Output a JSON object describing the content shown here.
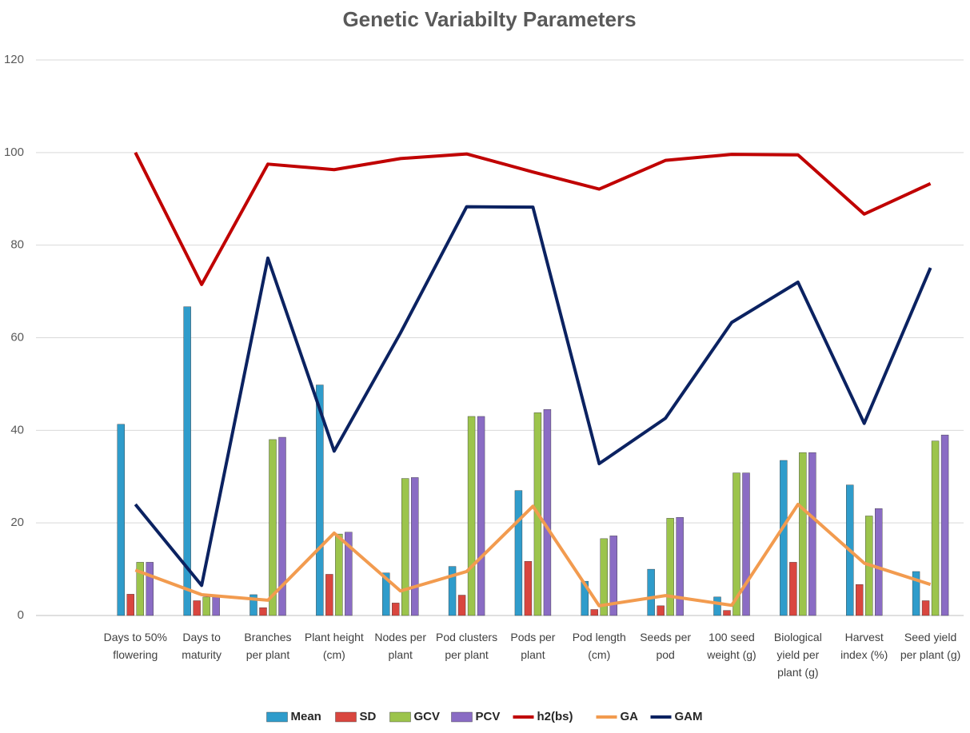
{
  "chart_data": {
    "type": "bar",
    "title": "Genetic Variabilty Parameters",
    "categories": [
      null,
      "Days to 50% flowering",
      "Days to maturity",
      "Branches per plant",
      "Plant height (cm)",
      "Nodes per plant",
      "Pod clusters per plant",
      "Pods per plant",
      "Pod length (cm)",
      "Seeds per pod",
      "100 seed weight (g)",
      "Biological yield per plant (g)",
      "Harvest index (%)",
      "Seed yield per plant (g)"
    ],
    "series": [
      {
        "name": "Mean",
        "type": "bar",
        "color": "#2f9ccb",
        "values": [
          null,
          41.3,
          66.7,
          4.5,
          49.8,
          9.2,
          10.6,
          27,
          7.4,
          10,
          4,
          33.5,
          28.2,
          9.5
        ]
      },
      {
        "name": "SD",
        "type": "bar",
        "color": "#d9463f",
        "values": [
          null,
          4.6,
          3.2,
          1.7,
          8.9,
          2.7,
          4.4,
          11.7,
          1.3,
          2.1,
          1.1,
          11.5,
          6.7,
          3.2
        ]
      },
      {
        "name": "GCV",
        "type": "bar",
        "color": "#9cc44c",
        "values": [
          null,
          11.5,
          4,
          38,
          17.6,
          29.6,
          43,
          43.8,
          16.6,
          21,
          30.8,
          35.2,
          21.5,
          37.7
        ]
      },
      {
        "name": "PCV",
        "type": "bar",
        "color": "#8a6cc4",
        "values": [
          null,
          11.5,
          4,
          38.5,
          18,
          29.8,
          43,
          44.5,
          17.2,
          21.2,
          30.8,
          35.2,
          23.1,
          39
        ]
      },
      {
        "name": "h2(bs)",
        "type": "line",
        "color": "#c00000",
        "values": [
          null,
          100,
          71.5,
          97.5,
          96.3,
          98.7,
          99.7,
          95.8,
          92.1,
          98.3,
          99.6,
          99.5,
          86.7,
          93.3
        ]
      },
      {
        "name": "GA",
        "type": "line",
        "color": "#f29b4f",
        "values": [
          null,
          9.8,
          4.5,
          3.3,
          17.8,
          5.3,
          9.5,
          23.6,
          2.1,
          4.3,
          2.2,
          24,
          11.3,
          6.7
        ]
      },
      {
        "name": "GAM",
        "type": "line",
        "color": "#0b2261",
        "values": [
          null,
          24,
          6.5,
          77.2,
          35.5,
          61,
          88.3,
          88.2,
          32.8,
          42.6,
          63.3,
          72,
          41.5,
          75.1
        ]
      }
    ],
    "ylim": [
      0,
      120
    ],
    "yticks": [
      0,
      20,
      40,
      60,
      80,
      100,
      120
    ],
    "grid": true,
    "legend": "bottom"
  }
}
